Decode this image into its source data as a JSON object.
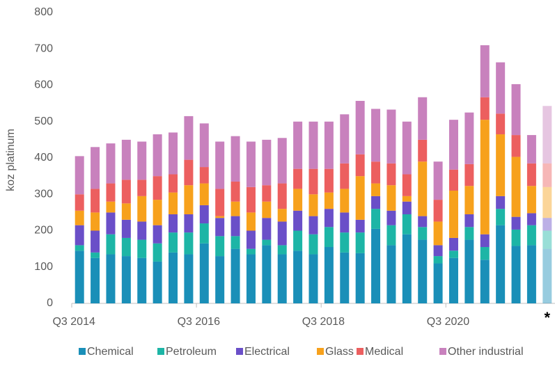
{
  "chart_data": {
    "type": "stacked_bar",
    "y_label": "koz platinum",
    "categories": [
      "Q3 2014",
      null,
      null,
      null,
      null,
      null,
      null,
      null,
      "Q3 2016",
      null,
      null,
      null,
      null,
      null,
      null,
      null,
      "Q3 2018",
      null,
      null,
      null,
      null,
      null,
      null,
      null,
      "Q3 2020",
      null,
      null,
      null,
      null,
      null,
      "*"
    ],
    "series": [
      {
        "name": "Chemical",
        "color": "#1a8fb8",
        "values": [
          145,
          125,
          135,
          130,
          125,
          115,
          140,
          135,
          165,
          130,
          150,
          135,
          160,
          135,
          145,
          135,
          155,
          140,
          138,
          205,
          160,
          190,
          175,
          110,
          125,
          175,
          120,
          215,
          158,
          160,
          150
        ]
      },
      {
        "name": "Petroleum",
        "color": "#1db5a6",
        "values": [
          15,
          15,
          55,
          50,
          50,
          50,
          55,
          60,
          55,
          55,
          35,
          15,
          15,
          25,
          55,
          55,
          55,
          55,
          57,
          55,
          55,
          55,
          35,
          20,
          20,
          35,
          35,
          45,
          45,
          55,
          50
        ]
      },
      {
        "name": "Electrical",
        "color": "#6a4fc8",
        "values": [
          55,
          60,
          60,
          50,
          50,
          50,
          50,
          50,
          50,
          50,
          55,
          50,
          60,
          65,
          55,
          50,
          50,
          55,
          35,
          35,
          40,
          35,
          30,
          30,
          35,
          35,
          35,
          35,
          35,
          33,
          35
        ]
      },
      {
        "name": "Glass",
        "color": "#f7a11c",
        "values": [
          40,
          50,
          30,
          45,
          70,
          70,
          60,
          80,
          60,
          5,
          40,
          50,
          45,
          35,
          60,
          60,
          45,
          65,
          120,
          35,
          70,
          15,
          150,
          65,
          130,
          78,
          315,
          170,
          165,
          75,
          85
        ]
      },
      {
        "name": "Medical",
        "color": "#ec5f5f",
        "values": [
          45,
          65,
          50,
          65,
          45,
          65,
          50,
          70,
          45,
          75,
          55,
          70,
          45,
          70,
          55,
          70,
          65,
          70,
          60,
          60,
          60,
          60,
          60,
          60,
          58,
          60,
          62,
          57,
          60,
          62,
          65
        ]
      },
      {
        "name": "Other industrial",
        "color": "#c881bd",
        "values": [
          105,
          115,
          110,
          110,
          105,
          115,
          115,
          120,
          120,
          130,
          125,
          125,
          125,
          125,
          130,
          130,
          130,
          135,
          147,
          145,
          148,
          145,
          117,
          105,
          137,
          142,
          143,
          141,
          140,
          78,
          158
        ]
      }
    ],
    "ylim": [
      0,
      800
    ],
    "yticks": [
      0,
      100,
      200,
      300,
      400,
      500,
      600,
      700,
      800
    ],
    "grid": false,
    "legend": "bottom"
  }
}
